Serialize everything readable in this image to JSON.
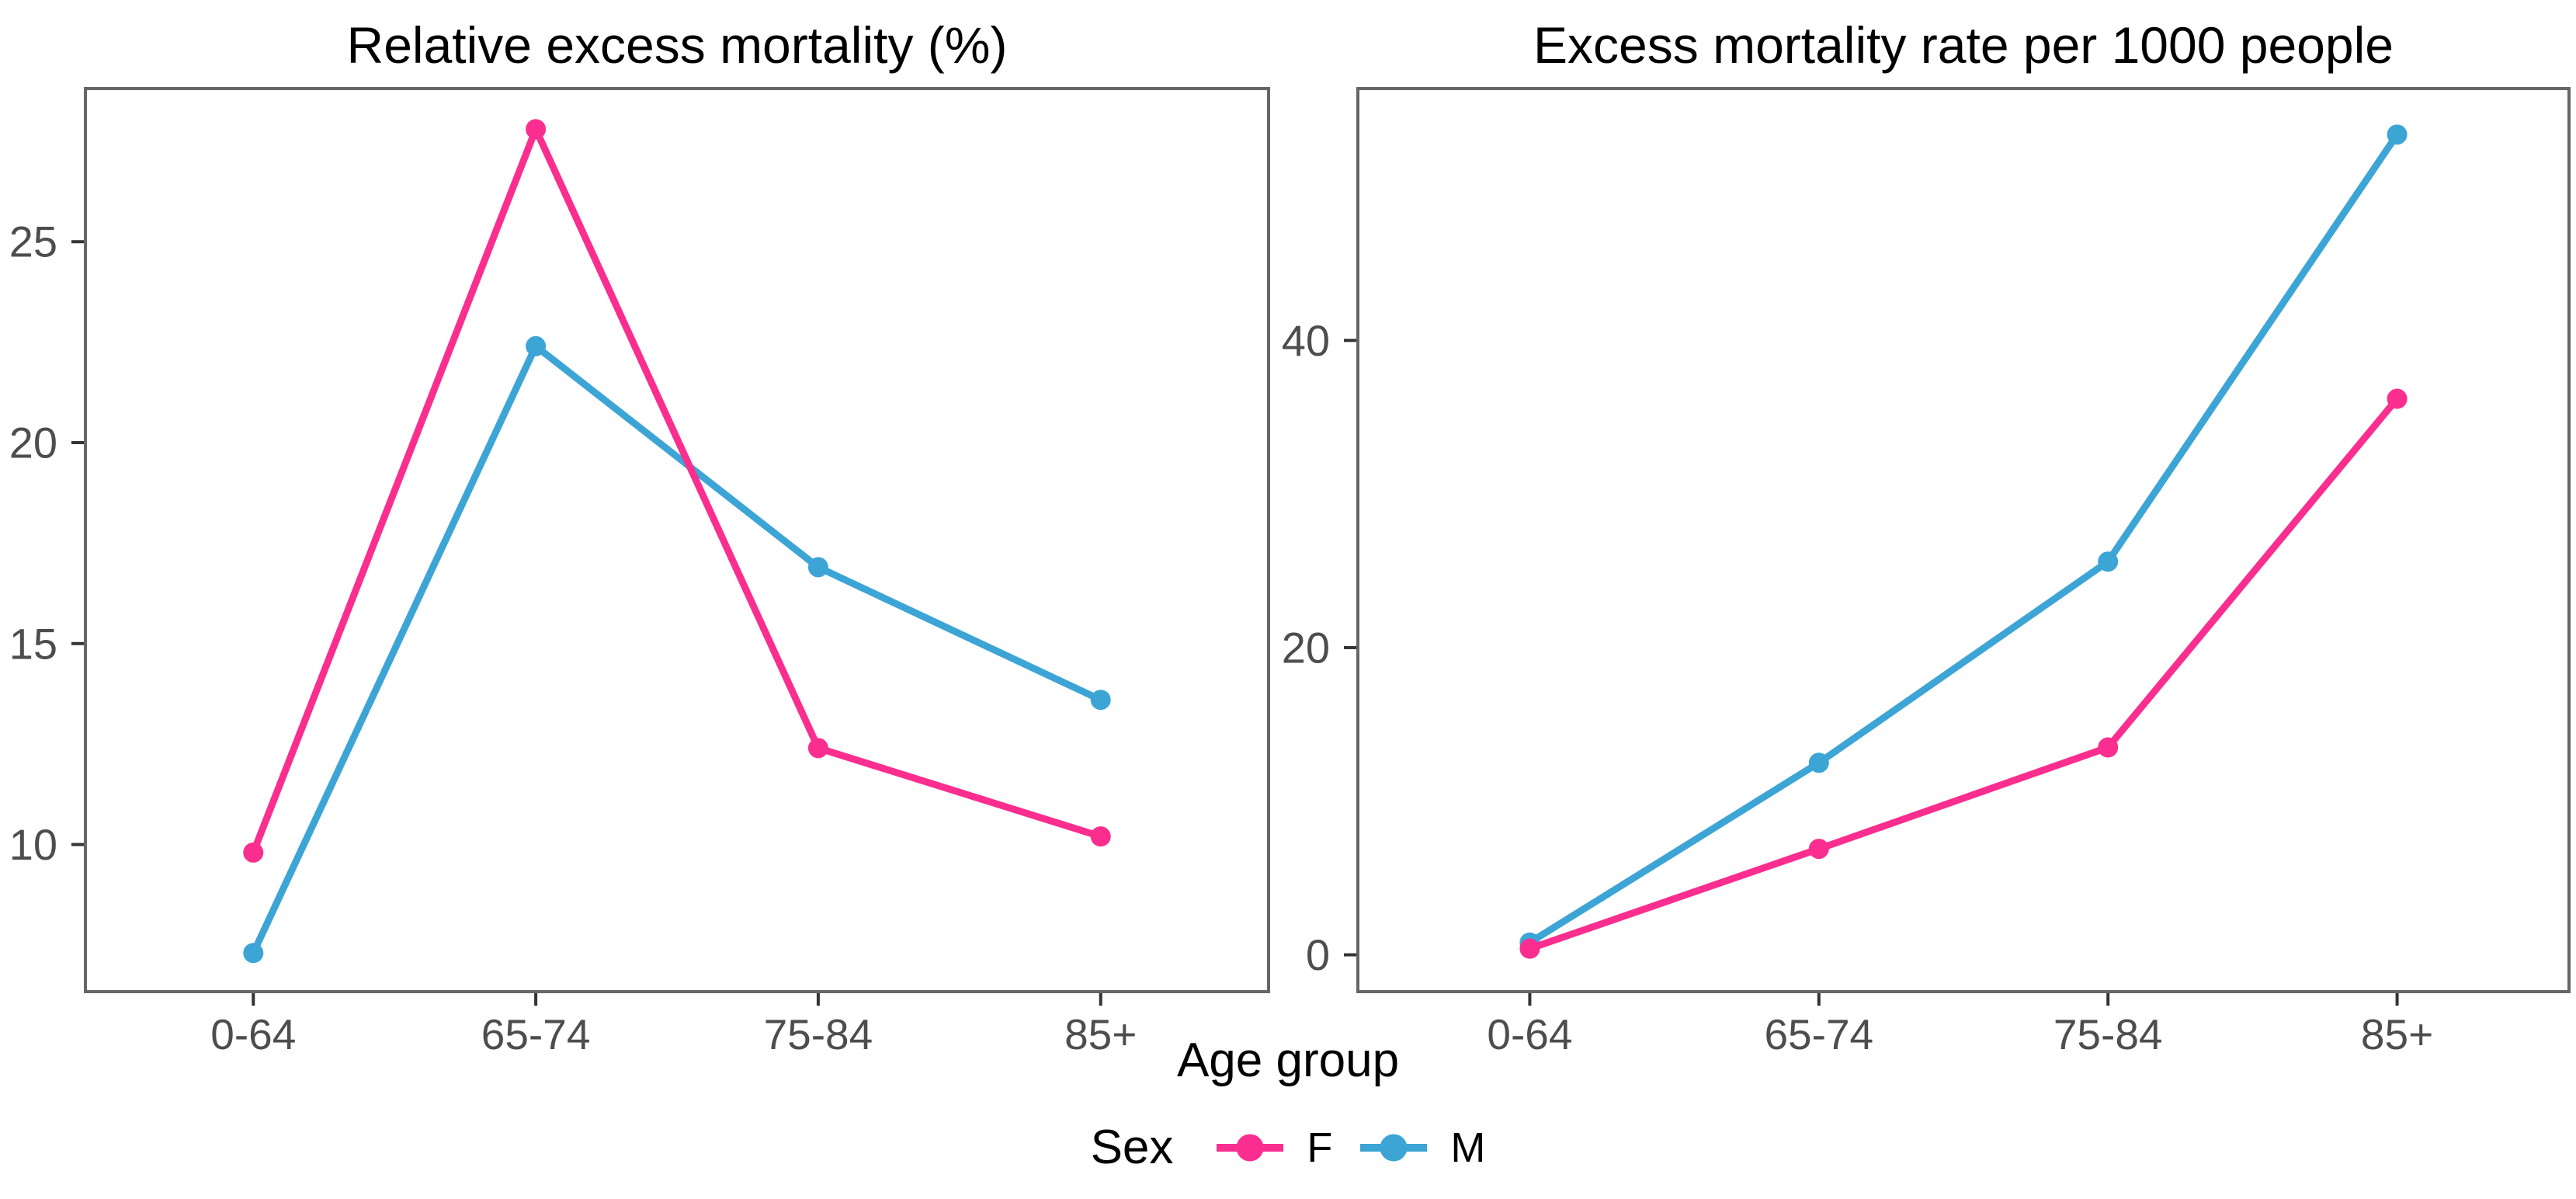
{
  "figure_background": "#ffffff",
  "styles": {
    "panel_border_color": "#666666",
    "tick_mark_color": "#333333",
    "tick_label_color": "#4d4d4d",
    "title_color": "#000000"
  },
  "x_axis_title": "Age group",
  "legend": {
    "title": "Sex",
    "entries": [
      {
        "label": "F",
        "color": "#FA2E8F"
      },
      {
        "label": "M",
        "color": "#3DA5D6"
      }
    ]
  },
  "chart_data": [
    {
      "type": "line",
      "title": "Relative excess mortality (%)",
      "categories": [
        "0-64",
        "65-74",
        "75-84",
        "85+"
      ],
      "series": [
        {
          "name": "F",
          "color": "#FA2E8F",
          "values": [
            9.8,
            27.8,
            12.4,
            10.2
          ]
        },
        {
          "name": "M",
          "color": "#3DA5D6",
          "values": [
            7.3,
            22.4,
            16.9,
            13.6
          ]
        }
      ],
      "yticks": [
        10,
        15,
        20,
        25
      ],
      "ylim": [
        6.3,
        28.85
      ],
      "xlabel": "Age group",
      "grid": false,
      "legend_position": "bottom"
    },
    {
      "type": "line",
      "title": "Excess mortality rate per 1000 people",
      "categories": [
        "0-64",
        "65-74",
        "75-84",
        "85+"
      ],
      "series": [
        {
          "name": "F",
          "color": "#FA2E8F",
          "values": [
            0.4,
            6.9,
            13.5,
            36.2
          ]
        },
        {
          "name": "M",
          "color": "#3DA5D6",
          "values": [
            0.8,
            12.5,
            25.6,
            53.4
          ]
        }
      ],
      "yticks": [
        0,
        20,
        40
      ],
      "ylim": [
        -2.5,
        56.5
      ],
      "xlabel": "Age group",
      "grid": false,
      "legend_position": "bottom"
    }
  ]
}
